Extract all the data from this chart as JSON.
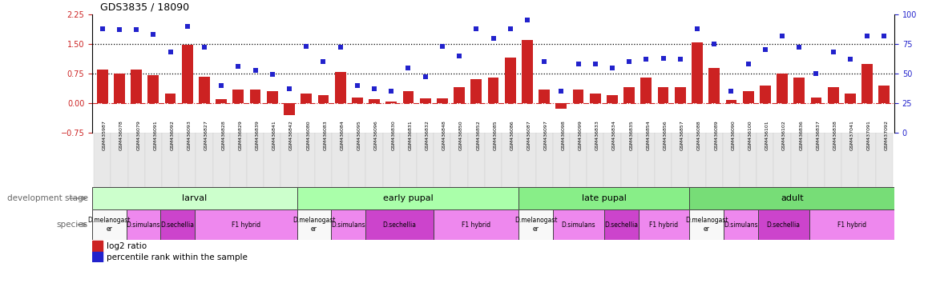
{
  "title": "GDS3835 / 18090",
  "samples": [
    "GSM435987",
    "GSM436078",
    "GSM436079",
    "GSM436091",
    "GSM436092",
    "GSM436093",
    "GSM436827",
    "GSM436828",
    "GSM436829",
    "GSM436839",
    "GSM436841",
    "GSM436842",
    "GSM436080",
    "GSM436083",
    "GSM436084",
    "GSM436095",
    "GSM436096",
    "GSM436830",
    "GSM436831",
    "GSM436832",
    "GSM436848",
    "GSM436850",
    "GSM436852",
    "GSM436085",
    "GSM436086",
    "GSM436087",
    "GSM436097",
    "GSM436098",
    "GSM436099",
    "GSM436833",
    "GSM436834",
    "GSM436835",
    "GSM436854",
    "GSM436856",
    "GSM436857",
    "GSM436088",
    "GSM436089",
    "GSM436090",
    "GSM436100",
    "GSM436101",
    "GSM436102",
    "GSM436836",
    "GSM436837",
    "GSM436838",
    "GSM437041",
    "GSM437091",
    "GSM437092"
  ],
  "log2_values": [
    0.85,
    0.75,
    0.85,
    0.7,
    0.25,
    1.47,
    0.67,
    0.1,
    0.35,
    0.35,
    0.3,
    -0.3,
    0.25,
    0.2,
    0.8,
    0.15,
    0.1,
    0.05,
    0.3,
    0.13,
    0.13,
    0.4,
    0.6,
    0.65,
    1.15,
    1.6,
    0.35,
    -0.15,
    0.35,
    0.25,
    0.2,
    0.4,
    0.65,
    0.4,
    0.4,
    1.55,
    0.9,
    0.08,
    0.3,
    0.45,
    0.75,
    0.65,
    0.15,
    0.4,
    0.25,
    1.0,
    0.45
  ],
  "percentile_values": [
    88,
    87,
    87,
    83,
    68,
    90,
    72,
    40,
    56,
    53,
    49,
    37,
    73,
    60,
    72,
    40,
    37,
    35,
    55,
    47,
    73,
    65,
    88,
    80,
    88,
    95,
    60,
    35,
    58,
    58,
    55,
    60,
    62,
    63,
    62,
    88,
    75,
    35,
    58,
    70,
    82,
    72,
    50,
    68,
    62,
    82,
    82
  ],
  "ylim_left": [
    -0.75,
    2.25
  ],
  "ylim_right": [
    0,
    100
  ],
  "yticks_left": [
    -0.75,
    0,
    0.75,
    1.5,
    2.25
  ],
  "yticks_right": [
    0,
    25,
    50,
    75,
    100
  ],
  "hlines": [
    0.75,
    1.5
  ],
  "bar_color": "#cc2222",
  "scatter_color": "#2222cc",
  "stage_groups": [
    {
      "label": "larval",
      "start": 0,
      "end": 11,
      "color": "#ccffcc"
    },
    {
      "label": "early pupal",
      "start": 12,
      "end": 24,
      "color": "#aaffaa"
    },
    {
      "label": "late pupal",
      "start": 25,
      "end": 34,
      "color": "#88ee88"
    },
    {
      "label": "adult",
      "start": 35,
      "end": 46,
      "color": "#77dd77"
    }
  ],
  "species_groups": [
    {
      "label": "D.melanogast\ner",
      "start": 0,
      "end": 1,
      "color": "#f8f8f8"
    },
    {
      "label": "D.simulans",
      "start": 2,
      "end": 3,
      "color": "#ee88ee"
    },
    {
      "label": "D.sechellia",
      "start": 4,
      "end": 5,
      "color": "#cc44cc"
    },
    {
      "label": "F1 hybrid",
      "start": 6,
      "end": 11,
      "color": "#ee88ee"
    },
    {
      "label": "D.melanogast\ner",
      "start": 12,
      "end": 13,
      "color": "#f8f8f8"
    },
    {
      "label": "D.simulans",
      "start": 14,
      "end": 15,
      "color": "#ee88ee"
    },
    {
      "label": "D.sechellia",
      "start": 16,
      "end": 19,
      "color": "#cc44cc"
    },
    {
      "label": "F1 hybrid",
      "start": 20,
      "end": 24,
      "color": "#ee88ee"
    },
    {
      "label": "D.melanogast\ner",
      "start": 25,
      "end": 26,
      "color": "#f8f8f8"
    },
    {
      "label": "D.simulans",
      "start": 27,
      "end": 29,
      "color": "#ee88ee"
    },
    {
      "label": "D.sechellia",
      "start": 30,
      "end": 31,
      "color": "#cc44cc"
    },
    {
      "label": "F1 hybrid",
      "start": 32,
      "end": 34,
      "color": "#ee88ee"
    },
    {
      "label": "D.melanogast\ner",
      "start": 35,
      "end": 36,
      "color": "#f8f8f8"
    },
    {
      "label": "D.simulans",
      "start": 37,
      "end": 38,
      "color": "#ee88ee"
    },
    {
      "label": "D.sechellia",
      "start": 39,
      "end": 41,
      "color": "#cc44cc"
    },
    {
      "label": "F1 hybrid",
      "start": 42,
      "end": 46,
      "color": "#ee88ee"
    }
  ],
  "legend_label_log2": "log2 ratio",
  "legend_label_pct": "percentile rank within the sample",
  "label_dev_stage": "development stage",
  "label_species": "species"
}
